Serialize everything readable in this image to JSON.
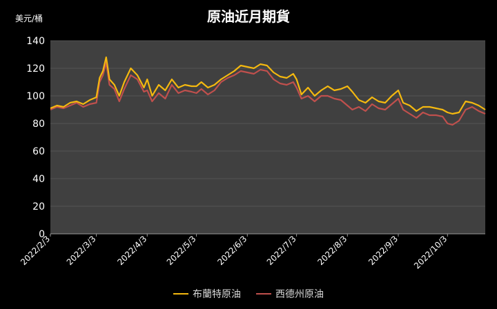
{
  "chart_data": {
    "type": "line",
    "title": "原油近月期貨",
    "ylabel": "美元/桶",
    "ylim": [
      0,
      140
    ],
    "yticks": [
      0,
      20,
      40,
      60,
      80,
      100,
      120,
      140
    ],
    "xticks": [
      "2022/2/3",
      "2022/3/3",
      "2022/4/3",
      "2022/5/3",
      "2022/6/3",
      "2022/7/3",
      "2022/8/3",
      "2022/9/3",
      "2022/10/3"
    ],
    "x": [
      "2022/2/3",
      "2022/2/7",
      "2022/2/11",
      "2022/2/15",
      "2022/2/19",
      "2022/2/23",
      "2022/2/27",
      "2022/3/3",
      "2022/3/5",
      "2022/3/7",
      "2022/3/9",
      "2022/3/11",
      "2022/3/14",
      "2022/3/17",
      "2022/3/20",
      "2022/3/24",
      "2022/3/28",
      "2022/4/1",
      "2022/4/3",
      "2022/4/6",
      "2022/4/10",
      "2022/4/14",
      "2022/4/18",
      "2022/4/22",
      "2022/4/26",
      "2022/4/30",
      "2022/5/3",
      "2022/5/6",
      "2022/5/10",
      "2022/5/14",
      "2022/5/18",
      "2022/5/22",
      "2022/5/26",
      "2022/5/30",
      "2022/6/3",
      "2022/6/7",
      "2022/6/11",
      "2022/6/15",
      "2022/6/19",
      "2022/6/23",
      "2022/6/27",
      "2022/7/1",
      "2022/7/3",
      "2022/7/6",
      "2022/7/10",
      "2022/7/14",
      "2022/7/18",
      "2022/7/22",
      "2022/7/26",
      "2022/7/30",
      "2022/8/3",
      "2022/8/6",
      "2022/8/10",
      "2022/8/14",
      "2022/8/18",
      "2022/8/22",
      "2022/8/26",
      "2022/8/30",
      "2022/9/3",
      "2022/9/6",
      "2022/9/10",
      "2022/9/14",
      "2022/9/18",
      "2022/9/22",
      "2022/9/26",
      "2022/9/30",
      "2022/10/3",
      "2022/10/6",
      "2022/10/10",
      "2022/10/14",
      "2022/10/18",
      "2022/10/22",
      "2022/10/26"
    ],
    "series": [
      {
        "name": "布蘭特原油",
        "color": "#f5b90f",
        "values": [
          91,
          93,
          92,
          95,
          96,
          94,
          97,
          99,
          113,
          118,
          128,
          112,
          108,
          100,
          110,
          120,
          115,
          106,
          112,
          100,
          108,
          104,
          112,
          106,
          108,
          107,
          107,
          110,
          106,
          108,
          112,
          115,
          118,
          122,
          121,
          120,
          123,
          122,
          117,
          114,
          113,
          116,
          112,
          101,
          106,
          100,
          104,
          107,
          104,
          105,
          107,
          103,
          97,
          95,
          99,
          96,
          95,
          100,
          104,
          95,
          93,
          89,
          92,
          92,
          91,
          90,
          88,
          87,
          88,
          96,
          95,
          93,
          90
        ],
        "show_in_legend": true
      },
      {
        "name": "西德州原油",
        "color": "#c0504d",
        "values": [
          90,
          92,
          91,
          93,
          95,
          92,
          94,
          95,
          110,
          115,
          124,
          108,
          105,
          96,
          105,
          115,
          112,
          103,
          104,
          96,
          102,
          98,
          108,
          102,
          104,
          103,
          102,
          105,
          101,
          104,
          110,
          113,
          115,
          118,
          117,
          116,
          119,
          118,
          112,
          109,
          108,
          110,
          106,
          98,
          100,
          96,
          100,
          100,
          98,
          97,
          93,
          90,
          92,
          89,
          94,
          91,
          90,
          94,
          98,
          90,
          87,
          84,
          88,
          86,
          86,
          85,
          80,
          79,
          82,
          90,
          92,
          89,
          87
        ],
        "show_in_legend": true
      }
    ],
    "legend_position": "bottom",
    "grid": true
  }
}
